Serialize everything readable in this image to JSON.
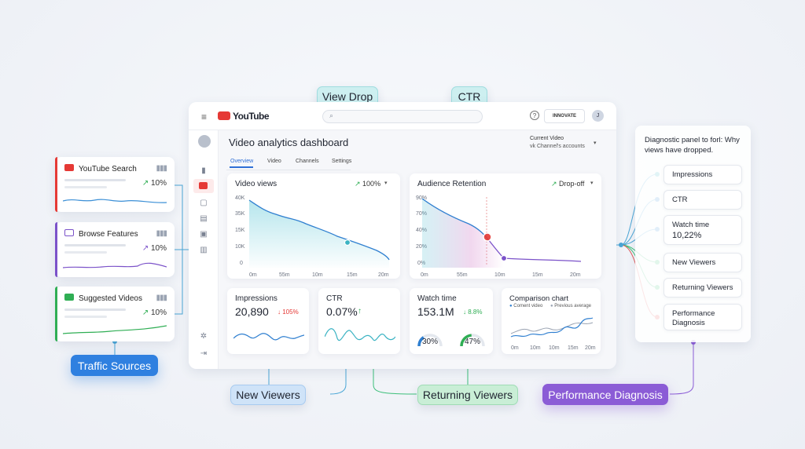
{
  "callouts": {
    "view_drop": "View Drop",
    "ctr": "CTR",
    "traffic_sources": "Traffic Sources",
    "new_viewers": "New Viewers",
    "returning_viewers": "Returning Viewers",
    "performance_diagnosis": "Performance Diagnosis"
  },
  "sources": [
    {
      "title": "YouTube Search",
      "pct": "10%",
      "color": "#e53935",
      "icon": "youtube-play-icon"
    },
    {
      "title": "Browse Features",
      "pct": "10%",
      "color": "#7b52c9",
      "icon": "folder-icon"
    },
    {
      "title": "Suggested Videos",
      "pct": "10%",
      "color": "#2fae54",
      "icon": "play-icon"
    }
  ],
  "header": {
    "logo": "YouTube",
    "account_button": "INNOVATE",
    "avatar_initial": "J"
  },
  "dashboard": {
    "title": "Video analytics dashboard",
    "tabs": [
      "Overview",
      "Video",
      "Channels",
      "Settings"
    ],
    "selector_label": "Current Video",
    "selector_value": "vk Channel's accounts"
  },
  "video_views": {
    "title": "Video views",
    "badge": "100%",
    "y_ticks": [
      "40K",
      "35K",
      "15K",
      "10K",
      "0"
    ],
    "x_ticks": [
      "0m",
      "55m",
      "10m",
      "15m",
      "20m"
    ]
  },
  "retention": {
    "title": "Audience Retention",
    "badge": "Drop-off",
    "y_ticks": [
      "90%",
      "70%",
      "40%",
      "20%",
      "0%"
    ],
    "x_ticks": [
      "0m",
      "55m",
      "10m",
      "15m",
      "20m"
    ]
  },
  "metrics": {
    "impressions": {
      "title": "Impressions",
      "value": "20,890",
      "delta": "↓ 105%"
    },
    "ctr": {
      "title": "CTR",
      "value": "0.07%",
      "delta": "↑"
    },
    "watch_time": {
      "title": "Watch time",
      "value": "153.1M",
      "delta": "↓ 8.8%",
      "gauge1": "30%",
      "gauge2": "47%",
      "gauge1_fill": 0.3,
      "gauge2_fill": 0.47
    },
    "comparison": {
      "title": "Comparison chart",
      "legend1": "Coment video",
      "legend2": "Previous average",
      "x_ticks": [
        "0m",
        "10m",
        "10m",
        "15m",
        "20m"
      ]
    }
  },
  "diagnostic": {
    "title": "Diagnostic panel to forl: Why views have dropped.",
    "items": [
      {
        "label": "Impressions",
        "sub": ""
      },
      {
        "label": "CTR",
        "sub": ""
      },
      {
        "label": "Watch time",
        "sub": "10,22%"
      },
      {
        "label": "New Viewers",
        "sub": ""
      },
      {
        "label": "Returning Viewers",
        "sub": ""
      },
      {
        "label": "Performance Diagnosis",
        "sub": ""
      }
    ]
  },
  "colors": {
    "accent": "#2f80e0",
    "teal": "#3bb3c3",
    "red": "#e53935",
    "purple": "#7b52c9",
    "green": "#2fae54"
  }
}
